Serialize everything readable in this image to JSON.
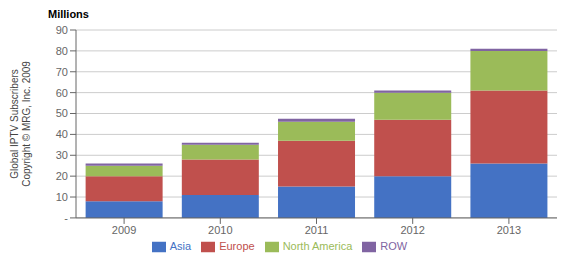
{
  "chart_data": {
    "type": "bar",
    "stacked": true,
    "categories": [
      "2009",
      "2010",
      "2011",
      "2012",
      "2013"
    ],
    "series": [
      {
        "name": "Asia",
        "color": "#4472C4",
        "values": [
          8,
          11,
          15,
          20,
          26
        ]
      },
      {
        "name": "Europe",
        "color": "#C0504D",
        "values": [
          12,
          17,
          22,
          27,
          35
        ]
      },
      {
        "name": "North America",
        "color": "#9BBB59",
        "values": [
          5,
          7,
          9,
          13,
          19
        ]
      },
      {
        "name": "ROW",
        "color": "#8064A2",
        "values": [
          1,
          1,
          1.5,
          1,
          1
        ]
      }
    ],
    "ylabel": "Global IPTV Subscribers\nCopyright © MRG, Inc. 2009",
    "annotations": [
      "Millions"
    ],
    "ylim": [
      0,
      90
    ],
    "yticks": [
      {
        "value": 0,
        "label": "-"
      },
      10,
      20,
      30,
      40,
      50,
      60,
      70,
      80,
      90
    ],
    "grid": true,
    "legend": "bottom"
  }
}
